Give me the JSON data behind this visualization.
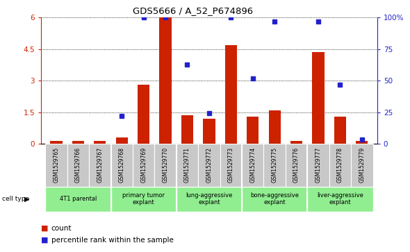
{
  "title": "GDS5666 / A_52_P674896",
  "samples": [
    "GSM1529765",
    "GSM1529766",
    "GSM1529767",
    "GSM1529768",
    "GSM1529769",
    "GSM1529770",
    "GSM1529771",
    "GSM1529772",
    "GSM1529773",
    "GSM1529774",
    "GSM1529775",
    "GSM1529776",
    "GSM1529777",
    "GSM1529778",
    "GSM1529779"
  ],
  "counts": [
    0.13,
    0.12,
    0.13,
    0.28,
    2.8,
    6.0,
    1.35,
    1.2,
    4.7,
    1.3,
    1.6,
    0.13,
    4.35,
    1.3,
    0.13
  ],
  "percentile_vals_pct": [
    null,
    null,
    null,
    22,
    100,
    100,
    63,
    24,
    100,
    52,
    97,
    null,
    97,
    47,
    3
  ],
  "bar_color": "#cc2200",
  "dot_color": "#2222cc",
  "ylim_left": [
    0,
    6
  ],
  "ylim_right": [
    0,
    100
  ],
  "yticks_left": [
    0,
    1.5,
    3.0,
    4.5,
    6.0
  ],
  "yticks_right": [
    0,
    25,
    50,
    75,
    100
  ],
  "ytick_labels_left": [
    "0",
    "1.5",
    "3",
    "4.5",
    "6"
  ],
  "ytick_labels_right": [
    "0",
    "25",
    "50",
    "75",
    "100%"
  ],
  "background_color": "#ffffff",
  "sample_row_color": "#c8c8c8",
  "cell_type_row_color": "#90ee90",
  "group_ranges": [
    [
      0,
      3
    ],
    [
      3,
      6
    ],
    [
      6,
      9
    ],
    [
      9,
      12
    ],
    [
      12,
      15
    ]
  ],
  "group_labels": [
    "4T1 parental",
    "primary tumor\nexplant",
    "lung-aggressive\nexplant",
    "bone-aggressive\nexplant",
    "liver-aggressive\nexplant"
  ],
  "group_bounds": [
    3,
    6,
    9,
    12
  ],
  "legend_count_label": "count",
  "legend_pct_label": "percentile rank within the sample"
}
